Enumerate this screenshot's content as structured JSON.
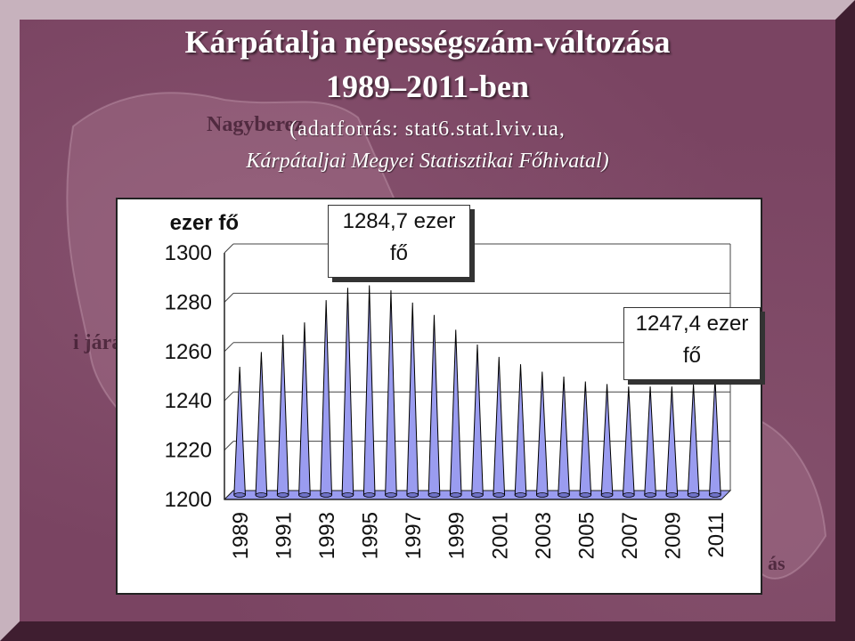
{
  "title": {
    "line1": "Kárpátalja népességszám-változása",
    "line2": "1989–2011-ben"
  },
  "source": {
    "line1": "(adatforrás: stat6.stat.lviv.ua,",
    "line2": "Kárpátaljai Megyei Statisztikai Főhivatal)"
  },
  "background_labels": {
    "top": "Nagyberez",
    "left": "i járá",
    "right": "ás"
  },
  "callouts": {
    "peak": {
      "line1": "1284,7 ezer",
      "line2": "fő"
    },
    "last": {
      "line1": "1247,4 ezer",
      "line2": "fő"
    }
  },
  "colors": {
    "background": "#7a4462",
    "spike_fill": "#9a9cf0",
    "spike_stroke": "#000000",
    "floor_fill": "#9a9cf0"
  },
  "chart_data": {
    "type": "bar",
    "bar_shape": "3d-cone",
    "ylabel": "ezer fő",
    "ylim": [
      1200,
      1300
    ],
    "yticks": [
      1200,
      1220,
      1240,
      1260,
      1280,
      1300
    ],
    "grid": true,
    "categories": [
      "1989",
      "1990",
      "1991",
      "1992",
      "1993",
      "1994",
      "1995",
      "1996",
      "1997",
      "1998",
      "1999",
      "2000",
      "2001",
      "2002",
      "2003",
      "2004",
      "2005",
      "2006",
      "2007",
      "2008",
      "2009",
      "2010",
      "2011"
    ],
    "x_tick_labels": [
      "1989",
      "1991",
      "1993",
      "1995",
      "1997",
      "1999",
      "2001",
      "2003",
      "2005",
      "2007",
      "2009",
      "2011"
    ],
    "values": [
      1252,
      1258,
      1265,
      1270,
      1279,
      1284,
      1285,
      1283,
      1278,
      1273,
      1267,
      1261,
      1256,
      1253,
      1250,
      1248,
      1246,
      1245,
      1244,
      1244,
      1244,
      1245,
      1247.4
    ]
  }
}
